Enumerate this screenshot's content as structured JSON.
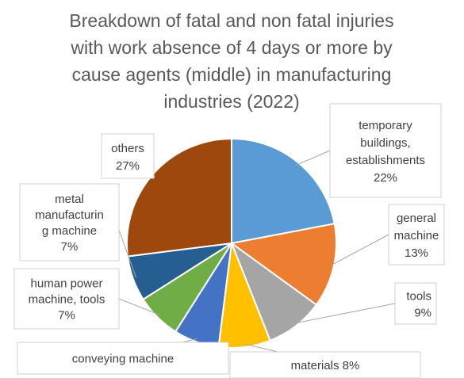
{
  "chart_data": {
    "type": "pie",
    "title": "Breakdown of fatal and non fatal injuries with work absence of 4 days or more by cause agents (middle) in manufacturing industries (2022)",
    "title_lines": [
      "Breakdown of fatal and non fatal injuries",
      "with work absence of 4 days or more by",
      "cause agents (middle) in manufacturing",
      "industries (2022)"
    ],
    "slices": [
      {
        "name": "temporary buildings, establishments",
        "value": 22,
        "label_lines": [
          "temporary",
          "buildings,",
          "establishments",
          "22%"
        ],
        "color": "#5b9bd5"
      },
      {
        "name": "general machine",
        "value": 13,
        "label_lines": [
          "general",
          "machine",
          "13%"
        ],
        "color": "#ed7d31"
      },
      {
        "name": "tools",
        "value": 9,
        "label_lines": [
          "tools",
          "9%"
        ],
        "color": "#a5a5a5"
      },
      {
        "name": "materials",
        "value": 8,
        "label_lines": [
          "materials 8%"
        ],
        "color": "#ffc000"
      },
      {
        "name": "conveying machine",
        "value": 7,
        "label_lines": [
          "conveying machine"
        ],
        "color": "#4472c4"
      },
      {
        "name": "human power machine, tools",
        "value": 7,
        "label_lines": [
          "human power",
          "machine, tools",
          "7%"
        ],
        "color": "#70ad47"
      },
      {
        "name": "metal manufacturing machine",
        "value": 7,
        "label_lines": [
          "metal",
          "manufacturin",
          "g machine",
          "7%"
        ],
        "color": "#255e91"
      },
      {
        "name": "others",
        "value": 27,
        "label_lines": [
          "others",
          "27%"
        ],
        "color": "#9e480e"
      }
    ],
    "legend": "none"
  }
}
